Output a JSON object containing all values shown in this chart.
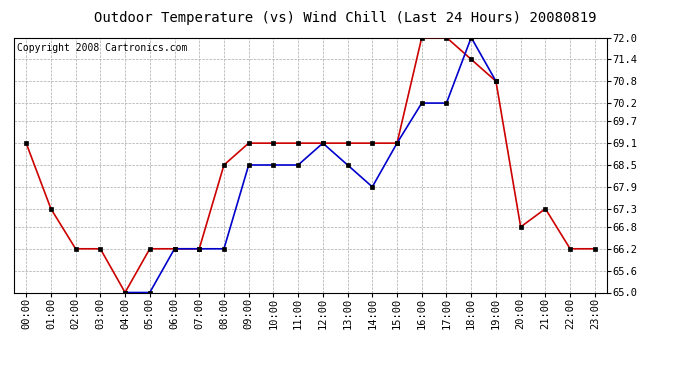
{
  "title": "Outdoor Temperature (vs) Wind Chill (Last 24 Hours) 20080819",
  "copyright": "Copyright 2008 Cartronics.com",
  "hours": [
    "00:00",
    "01:00",
    "02:00",
    "03:00",
    "04:00",
    "05:00",
    "06:00",
    "07:00",
    "08:00",
    "09:00",
    "10:00",
    "11:00",
    "12:00",
    "13:00",
    "14:00",
    "15:00",
    "16:00",
    "17:00",
    "18:00",
    "19:00",
    "20:00",
    "21:00",
    "22:00",
    "23:00"
  ],
  "temp": [
    69.1,
    67.3,
    66.2,
    66.2,
    65.0,
    66.2,
    66.2,
    66.2,
    68.5,
    69.1,
    69.1,
    69.1,
    69.1,
    69.1,
    69.1,
    69.1,
    72.0,
    72.0,
    71.4,
    70.8,
    66.8,
    67.3,
    66.2,
    66.2
  ],
  "windchill": [
    null,
    null,
    null,
    null,
    65.0,
    65.0,
    66.2,
    66.2,
    66.2,
    68.5,
    68.5,
    68.5,
    69.1,
    68.5,
    67.9,
    69.1,
    70.2,
    70.2,
    72.0,
    70.8,
    null,
    null,
    null,
    null
  ],
  "temp_color": "#cc0000",
  "windchill_color": "#0000cc",
  "bg_color": "#ffffff",
  "plot_bg_color": "#ffffff",
  "grid_color": "#aaaaaa",
  "ylim": [
    65.0,
    72.0
  ],
  "yticks": [
    65.0,
    65.6,
    66.2,
    66.8,
    67.3,
    67.9,
    68.5,
    69.1,
    69.7,
    70.2,
    70.8,
    71.4,
    72.0
  ],
  "title_fontsize": 10,
  "tick_fontsize": 7.5,
  "copyright_fontsize": 7,
  "markersize": 3,
  "linewidth": 1.2
}
